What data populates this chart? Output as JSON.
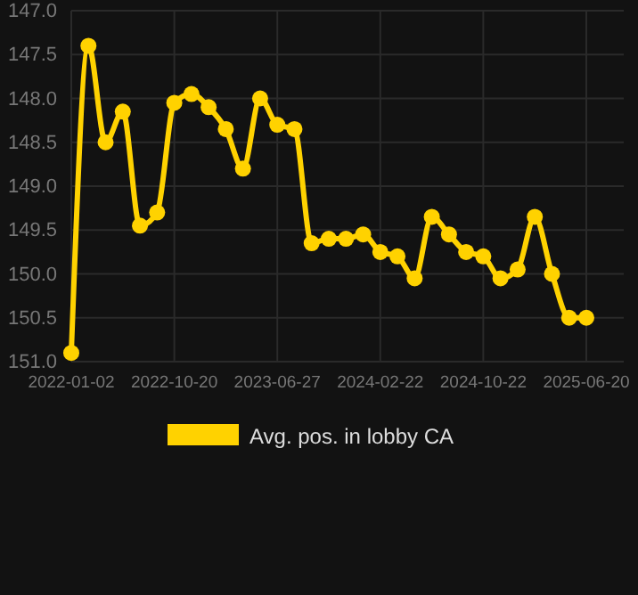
{
  "chart_data": {
    "type": "line",
    "categories": [
      "2022-01-02",
      null,
      null,
      null,
      null,
      null,
      "2022-10-20",
      null,
      null,
      null,
      null,
      null,
      "2023-06-27",
      null,
      null,
      null,
      null,
      null,
      "2024-02-22",
      null,
      null,
      null,
      null,
      null,
      "2024-10-22",
      null,
      null,
      null,
      null,
      null,
      "2025-06-20"
    ],
    "series": [
      {
        "name": "Avg. pos. in lobby CA",
        "color": "#ffd200",
        "values": [
          150.9,
          147.4,
          148.5,
          148.15,
          149.45,
          149.3,
          148.05,
          147.95,
          148.1,
          148.35,
          148.8,
          148.0,
          148.3,
          148.35,
          149.65,
          149.6,
          149.6,
          149.55,
          149.75,
          149.8,
          150.05,
          149.35,
          149.55,
          149.75,
          149.8,
          150.05,
          149.95,
          149.35,
          150.0,
          150.5,
          150.5
        ]
      }
    ],
    "ylim": [
      151.0,
      147.0
    ],
    "yticks": [
      {
        "value": 151.0,
        "label": "151.0"
      },
      {
        "value": 150.5,
        "label": "150.5"
      },
      {
        "value": 150.0,
        "label": "150.0"
      },
      {
        "value": 149.5,
        "label": "149.5"
      },
      {
        "value": 149.0,
        "label": "149.0"
      },
      {
        "value": 148.5,
        "label": "148.5"
      },
      {
        "value": 148.0,
        "label": "148.0"
      },
      {
        "value": 147.5,
        "label": "147.5"
      },
      {
        "value": 147.0,
        "label": "147.0"
      }
    ],
    "grid": true,
    "legend": "bottom",
    "marker": "circle",
    "line_style": "solid"
  }
}
